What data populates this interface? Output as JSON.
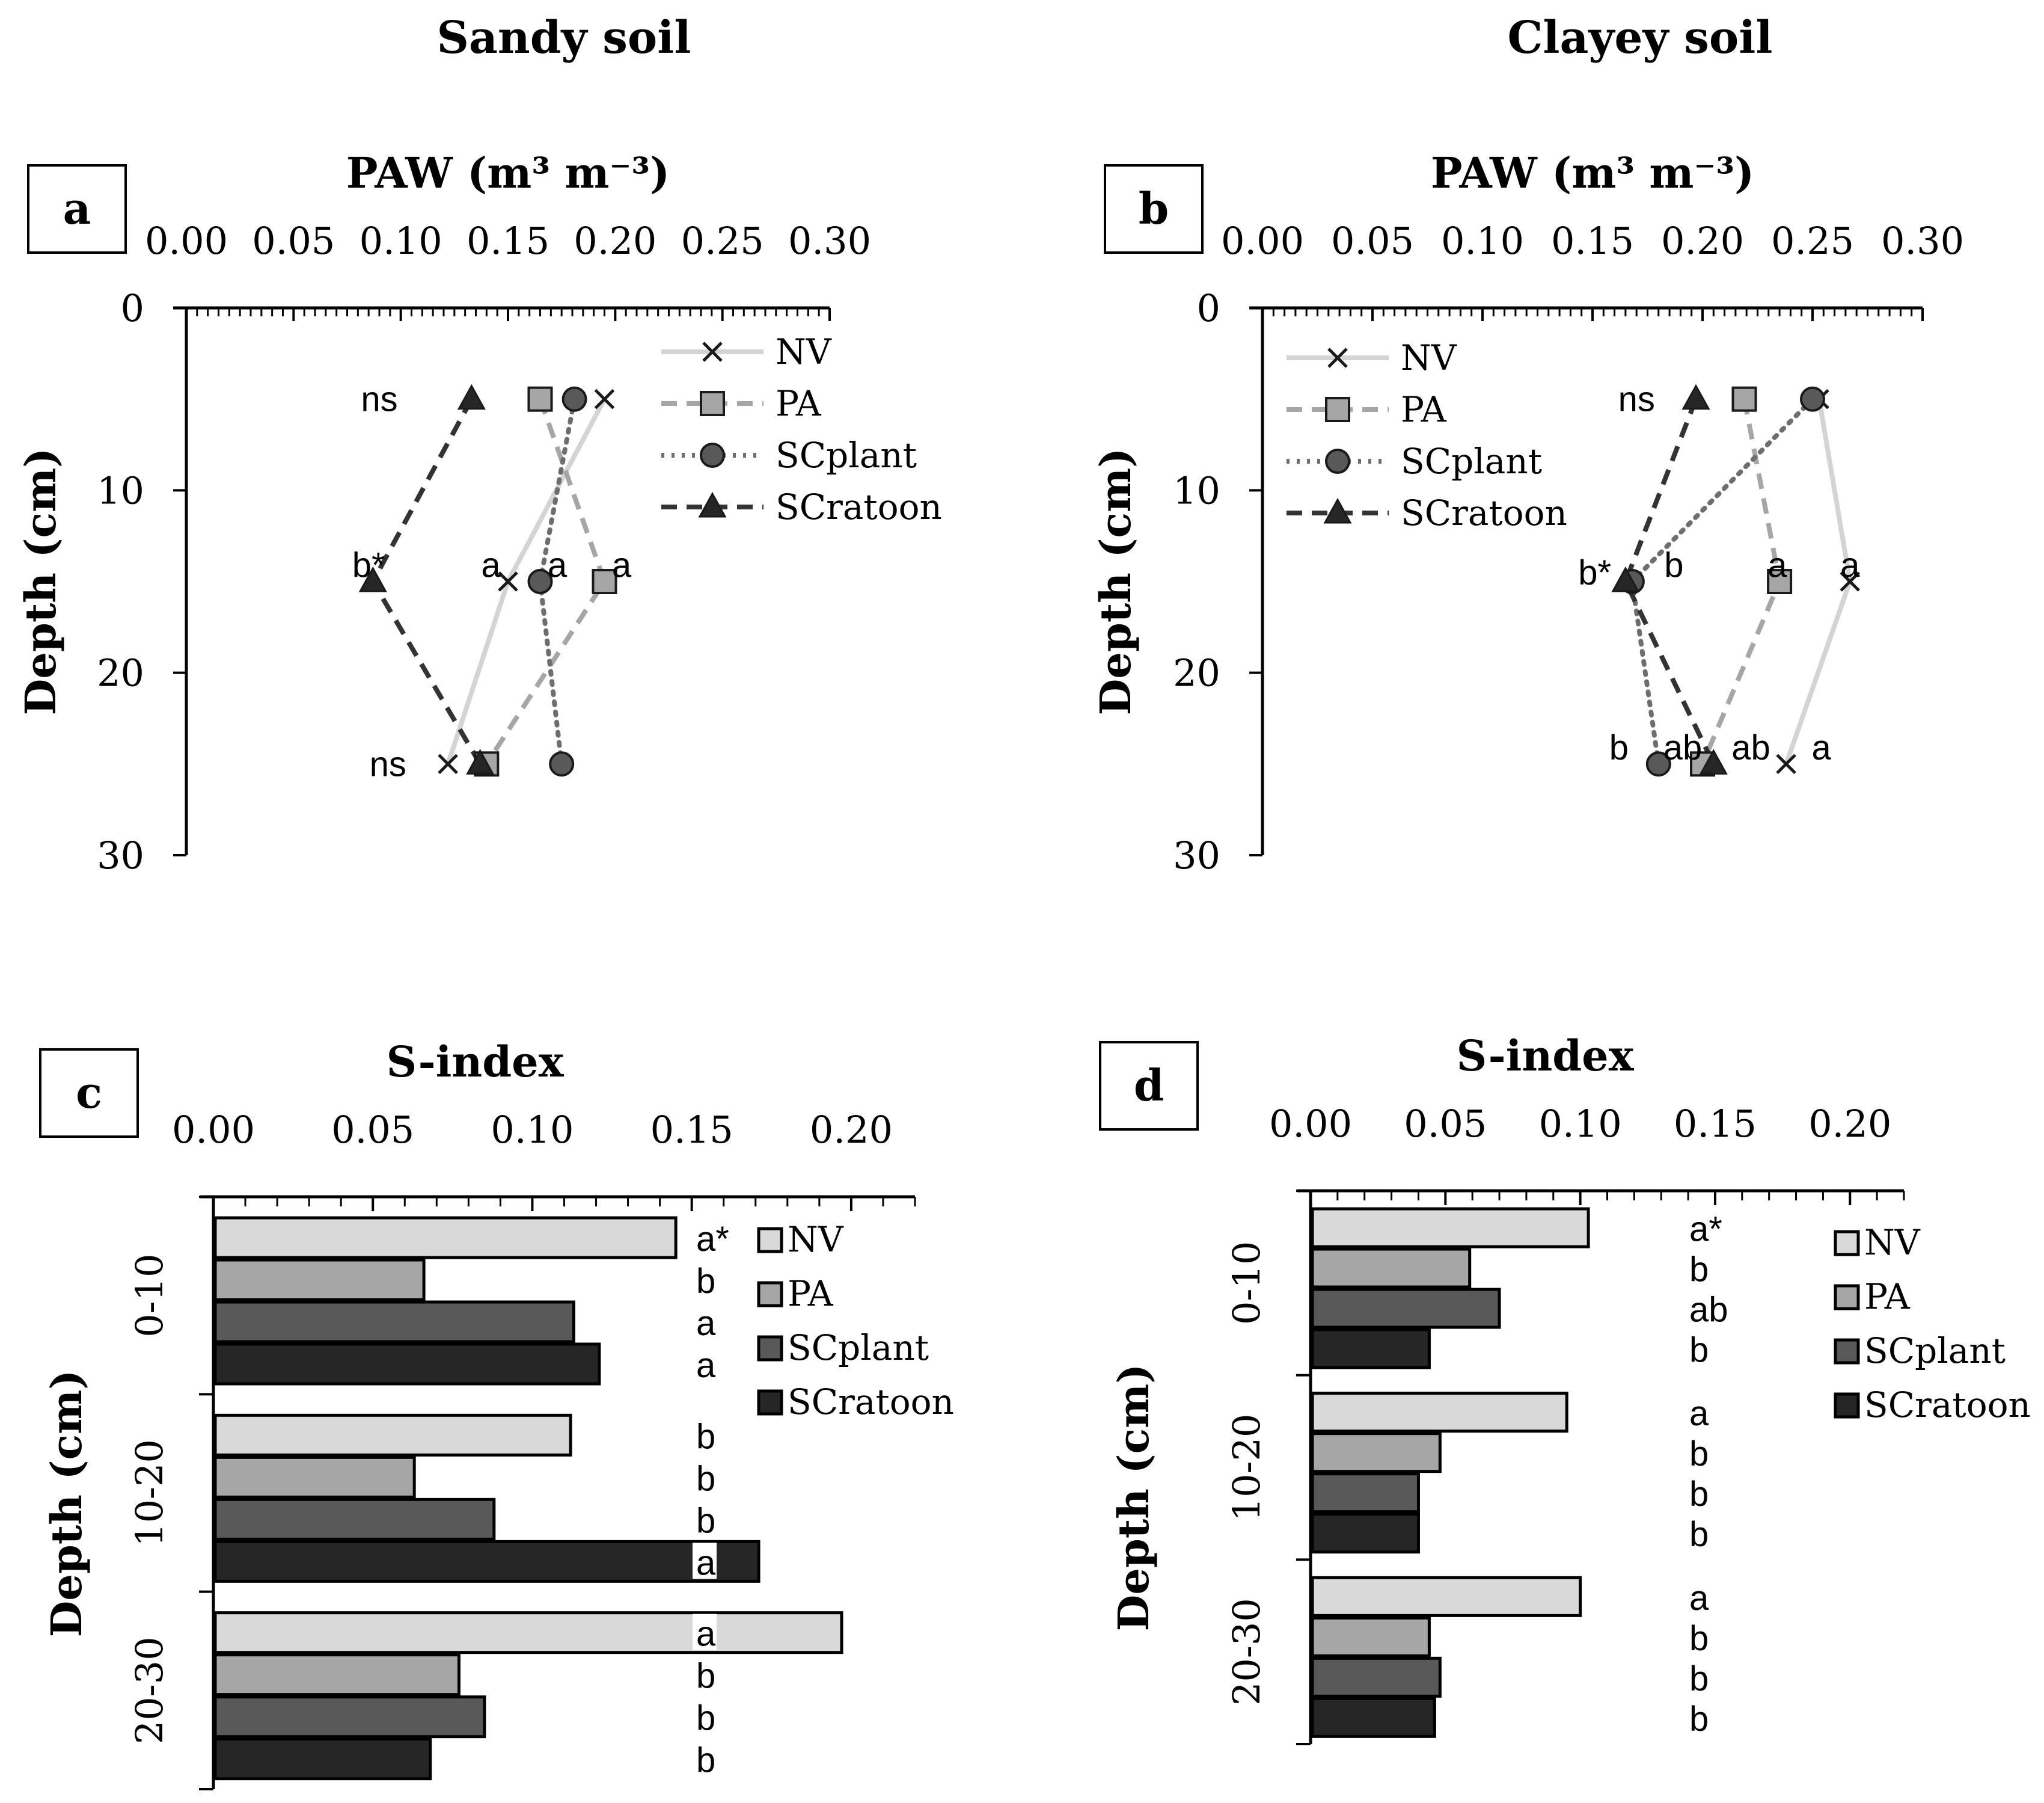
{
  "colors": {
    "NV_fill": "#d9d9d9",
    "NV_line": "#d4d4d4",
    "PA_fill": "#a6a6a6",
    "PA_line": "#a6a6a6",
    "SCplant_fill": "#595959",
    "SCplant_line": "#6e6e6e",
    "SCratoon_fill": "#262626",
    "SCratoon_line": "#333333",
    "axis": "#000000"
  },
  "columns": [
    {
      "title": "Sandy soil"
    },
    {
      "title": "Clayey soil"
    }
  ],
  "chart_data": [
    {
      "id": "a",
      "panel_label": "a",
      "type": "line",
      "orientation": "profile",
      "xlabel": "PAW (m³ m⁻³)",
      "ylabel": "Depth (cm)",
      "xlim": [
        0,
        0.3
      ],
      "ylim": [
        0,
        30
      ],
      "x_ticks": [
        "0.00",
        "0.05",
        "0.10",
        "0.15",
        "0.20",
        "0.25",
        "0.30"
      ],
      "y_ticks": [
        "0",
        "10",
        "20",
        "30"
      ],
      "depths": [
        5,
        15,
        25
      ],
      "series": [
        {
          "name": "NV",
          "marker": "x",
          "dash": "solid",
          "values": [
            0.195,
            0.15,
            0.122
          ]
        },
        {
          "name": "PA",
          "marker": "square",
          "dash": "dashed",
          "values": [
            0.165,
            0.195,
            0.14
          ]
        },
        {
          "name": "SCplant",
          "marker": "circle",
          "dash": "dotted",
          "values": [
            0.181,
            0.165,
            0.175
          ]
        },
        {
          "name": "SCratoon",
          "marker": "triangle",
          "dash": "dashed",
          "values": [
            0.133,
            0.087,
            0.137
          ]
        }
      ],
      "annotations": [
        {
          "text": "ns",
          "depth": 5,
          "x": 0.09
        },
        {
          "text": "b*",
          "depth": 15,
          "x": 0.085,
          "dy": -0.9
        },
        {
          "text": "a",
          "depth": 15,
          "x": 0.142,
          "dy": -0.9
        },
        {
          "text": "a",
          "depth": 15,
          "x": 0.173,
          "dy": -0.9
        },
        {
          "text": "a",
          "depth": 15,
          "x": 0.203,
          "dy": -0.9
        },
        {
          "text": "ns",
          "depth": 25,
          "x": 0.094
        }
      ],
      "legend": "top-right"
    },
    {
      "id": "b",
      "panel_label": "b",
      "type": "line",
      "orientation": "profile",
      "xlabel": "PAW (m³ m⁻³)",
      "ylabel": "Depth (cm)",
      "xlim": [
        0,
        0.3
      ],
      "ylim": [
        0,
        30
      ],
      "x_ticks": [
        "0.00",
        "0.05",
        "0.10",
        "0.15",
        "0.20",
        "0.25",
        "0.30"
      ],
      "y_ticks": [
        "0",
        "10",
        "20",
        "30"
      ],
      "depths": [
        5,
        15,
        25
      ],
      "series": [
        {
          "name": "NV",
          "marker": "x",
          "dash": "solid",
          "values": [
            0.253,
            0.267,
            0.238
          ]
        },
        {
          "name": "PA",
          "marker": "square",
          "dash": "dashed",
          "values": [
            0.219,
            0.235,
            0.2
          ]
        },
        {
          "name": "SCplant",
          "marker": "circle",
          "dash": "dotted",
          "values": [
            0.25,
            0.168,
            0.18
          ]
        },
        {
          "name": "SCratoon",
          "marker": "triangle",
          "dash": "dashed",
          "values": [
            0.197,
            0.165,
            0.205
          ]
        }
      ],
      "annotations": [
        {
          "text": "ns",
          "depth": 5,
          "x": 0.17
        },
        {
          "text": "b*",
          "depth": 15,
          "x": 0.151,
          "dy": -0.5
        },
        {
          "text": "b",
          "depth": 15,
          "x": 0.187,
          "dy": -0.9
        },
        {
          "text": "a",
          "depth": 15,
          "x": 0.234,
          "dy": -0.9
        },
        {
          "text": "a",
          "depth": 15,
          "x": 0.267,
          "dy": -0.9
        },
        {
          "text": "b",
          "depth": 25,
          "x": 0.162,
          "dy": -0.9
        },
        {
          "text": "ab",
          "depth": 25,
          "x": 0.191,
          "dy": -0.9
        },
        {
          "text": "ab",
          "depth": 25,
          "x": 0.222,
          "dy": -0.9
        },
        {
          "text": "a",
          "depth": 25,
          "x": 0.254,
          "dy": -0.9
        }
      ],
      "legend": "top-left"
    },
    {
      "id": "c",
      "panel_label": "c",
      "type": "bar",
      "orientation": "horizontal",
      "xlabel": "S-index",
      "ylabel": "Depth  (cm)",
      "xlim": [
        0,
        0.22
      ],
      "x_ticks": [
        "0.00",
        "0.05",
        "0.10",
        "0.15",
        "0.20"
      ],
      "categories": [
        "0-10",
        "10-20",
        "20-30"
      ],
      "series": [
        {
          "name": "NV",
          "values": [
            0.145,
            0.112,
            0.197
          ]
        },
        {
          "name": "PA",
          "values": [
            0.066,
            0.063,
            0.077
          ]
        },
        {
          "name": "SCplant",
          "values": [
            0.113,
            0.088,
            0.085
          ]
        },
        {
          "name": "SCratoon",
          "values": [
            0.121,
            0.171,
            0.068
          ]
        }
      ],
      "letters": [
        [
          "a*",
          "b",
          "a",
          "a"
        ],
        [
          "b",
          "b",
          "b",
          "a"
        ],
        [
          "a",
          "b",
          "b",
          "b"
        ]
      ],
      "legend": "top-right"
    },
    {
      "id": "d",
      "panel_label": "d",
      "type": "bar",
      "orientation": "horizontal",
      "xlabel": "S-index",
      "ylabel": "Depth  (cm)",
      "xlim": [
        0,
        0.22
      ],
      "x_ticks": [
        "0.00",
        "0.05",
        "0.10",
        "0.15",
        "0.20"
      ],
      "categories": [
        "0-10",
        "10-20",
        "20-30"
      ],
      "series": [
        {
          "name": "NV",
          "values": [
            0.103,
            0.095,
            0.1
          ]
        },
        {
          "name": "PA",
          "values": [
            0.059,
            0.048,
            0.044
          ]
        },
        {
          "name": "SCplant",
          "values": [
            0.07,
            0.04,
            0.048
          ]
        },
        {
          "name": "SCratoon",
          "values": [
            0.044,
            0.04,
            0.046
          ]
        }
      ],
      "letters": [
        [
          "a*",
          "b",
          "ab",
          "b"
        ],
        [
          "a",
          "b",
          "b",
          "b"
        ],
        [
          "a",
          "b",
          "b",
          "b"
        ]
      ],
      "legend": "top-right"
    }
  ]
}
